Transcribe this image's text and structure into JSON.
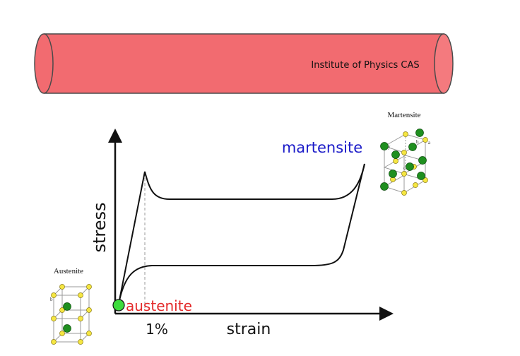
{
  "banner": {
    "label": "Institute of Physics CAS",
    "fill_color": "#f26b70",
    "stroke_color": "#4a4a4a"
  },
  "diagram": {
    "y_axis_label": "stress",
    "x_axis_label": "strain",
    "x_tick_label": "1%",
    "start_state_label": "austenite",
    "end_state_label": "martensite",
    "start_state_color": "#e32a2a",
    "end_state_color": "#1a1ac8",
    "start_marker_color": "#3ddc3d",
    "curve_color": "#111111",
    "dashed_line_color": "#999999"
  },
  "crystals": {
    "austenite": {
      "caption": "Austenite",
      "atom_label": "b"
    },
    "martensite": {
      "caption": "Martensite",
      "atom_labels": [
        "b",
        "a",
        "c",
        "y"
      ]
    },
    "atom_yellow": "#f5e642",
    "atom_green": "#1f8f1f",
    "lattice_color": "#9a9a9a"
  }
}
